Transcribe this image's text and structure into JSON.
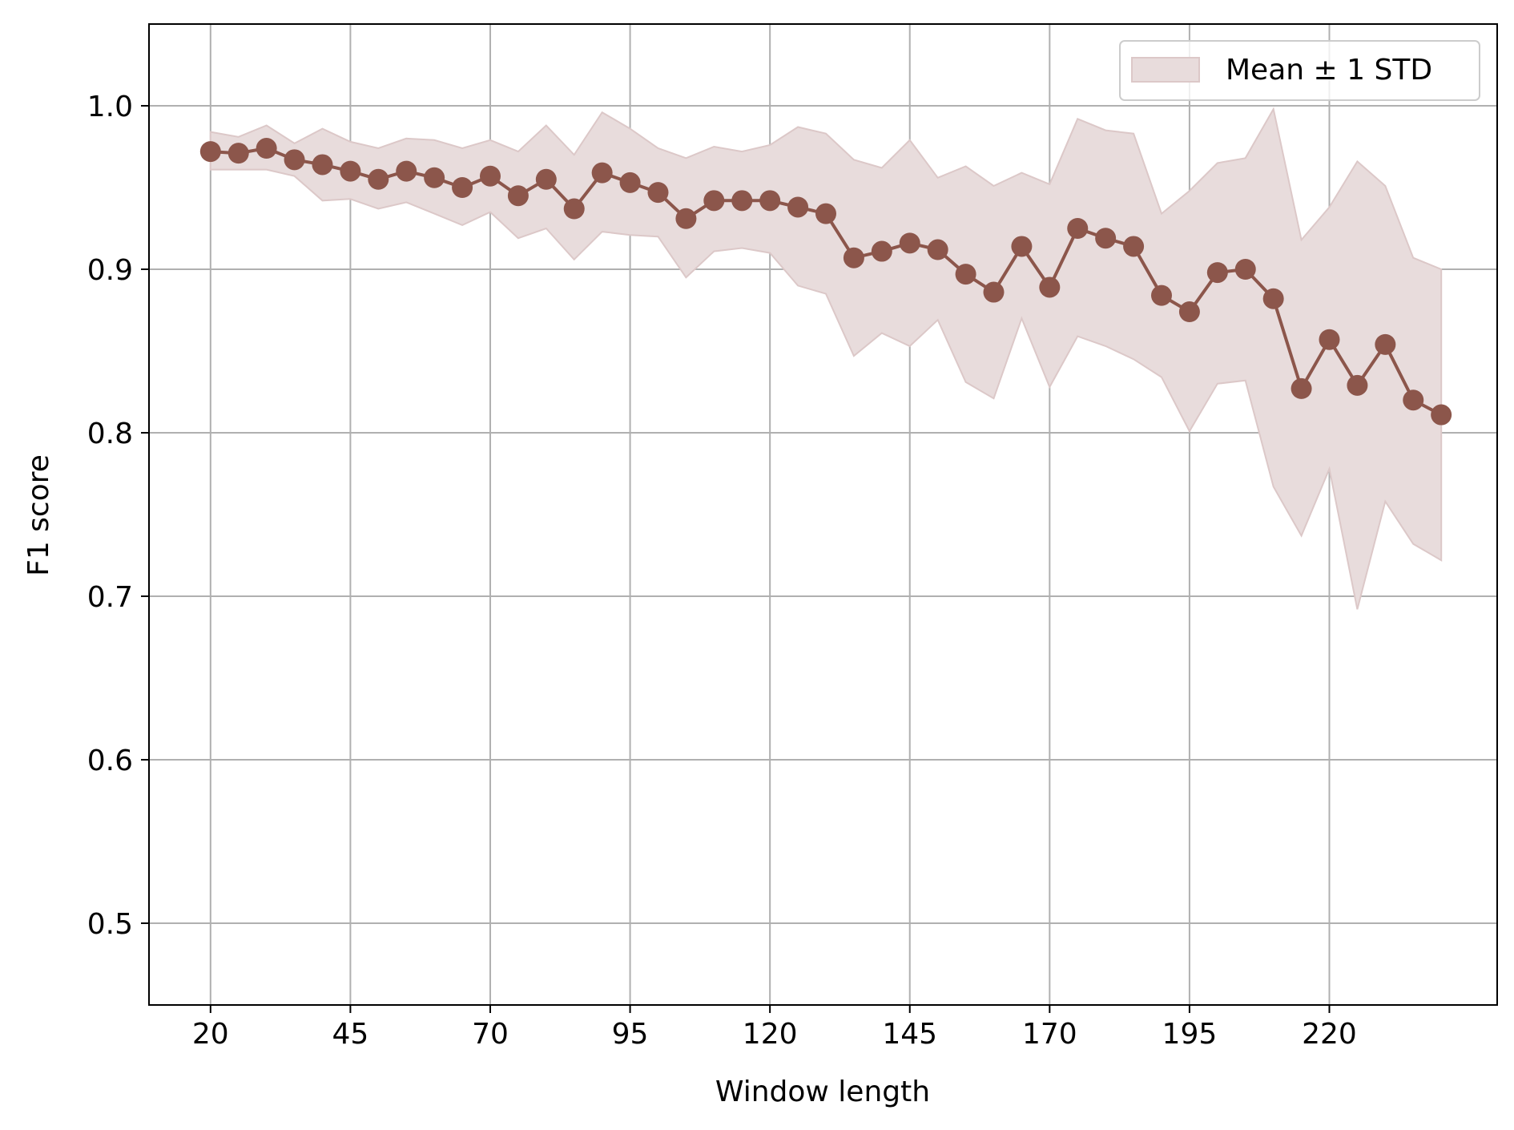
{
  "colors": {
    "line": "#8c564b",
    "band_fill": "#e8dcdc",
    "band_edge": "#dcc8c8",
    "grid": "#b0b0b0",
    "axes": "#000000",
    "background": "#ffffff"
  },
  "chart_data": {
    "type": "line",
    "title": "",
    "xlabel": "Window length",
    "ylabel": "F1 score",
    "xlim": [
      9,
      250
    ],
    "ylim": [
      0.45,
      1.05
    ],
    "x_ticks": [
      20,
      45,
      70,
      95,
      120,
      145,
      170,
      195,
      220
    ],
    "y_ticks": [
      0.5,
      0.6,
      0.7,
      0.8,
      0.9,
      1.0
    ],
    "x_tick_labels": [
      "20",
      "45",
      "70",
      "95",
      "120",
      "145",
      "170",
      "195",
      "220"
    ],
    "y_tick_labels": [
      "0.5",
      "0.6",
      "0.7",
      "0.8",
      "0.9",
      "1.0"
    ],
    "grid": true,
    "legend": {
      "position": "top-right",
      "entries": [
        "Mean ± 1 STD"
      ]
    },
    "x": [
      20,
      25,
      30,
      35,
      40,
      45,
      50,
      55,
      60,
      65,
      70,
      75,
      80,
      85,
      90,
      95,
      100,
      105,
      110,
      115,
      120,
      125,
      130,
      135,
      140,
      145,
      150,
      155,
      160,
      165,
      170,
      175,
      180,
      185,
      190,
      195,
      200,
      205,
      210,
      215,
      220,
      225,
      230,
      235,
      240
    ],
    "series": [
      {
        "values": [
          0.972,
          0.971,
          0.974,
          0.967,
          0.964,
          0.96,
          0.955,
          0.96,
          0.956,
          0.95,
          0.957,
          0.945,
          0.955,
          0.937,
          0.959,
          0.953,
          0.947,
          0.931,
          0.942,
          0.942,
          0.942,
          0.938,
          0.934,
          0.907,
          0.911,
          0.916,
          0.912,
          0.897,
          0.886,
          0.914,
          0.889,
          0.925,
          0.919,
          0.914,
          0.884,
          0.874,
          0.898,
          0.9,
          0.882,
          0.827,
          0.857,
          0.829,
          0.854,
          0.82,
          0.811
        ],
        "upper": [
          0.984,
          0.981,
          0.988,
          0.977,
          0.986,
          0.978,
          0.974,
          0.98,
          0.979,
          0.974,
          0.979,
          0.972,
          0.988,
          0.97,
          0.996,
          0.986,
          0.974,
          0.968,
          0.975,
          0.972,
          0.976,
          0.987,
          0.983,
          0.967,
          0.962,
          0.979,
          0.956,
          0.963,
          0.951,
          0.959,
          0.952,
          0.992,
          0.985,
          0.983,
          0.934,
          0.948,
          0.965,
          0.968,
          0.998,
          0.918,
          0.938,
          0.966,
          0.951,
          0.907,
          0.9
        ],
        "lower": [
          0.961,
          0.961,
          0.961,
          0.957,
          0.942,
          0.943,
          0.937,
          0.941,
          0.934,
          0.927,
          0.935,
          0.919,
          0.925,
          0.906,
          0.923,
          0.921,
          0.92,
          0.895,
          0.911,
          0.913,
          0.91,
          0.89,
          0.885,
          0.847,
          0.861,
          0.853,
          0.869,
          0.831,
          0.821,
          0.87,
          0.828,
          0.859,
          0.853,
          0.845,
          0.834,
          0.801,
          0.83,
          0.832,
          0.767,
          0.737,
          0.778,
          0.692,
          0.758,
          0.732,
          0.722
        ]
      }
    ]
  }
}
